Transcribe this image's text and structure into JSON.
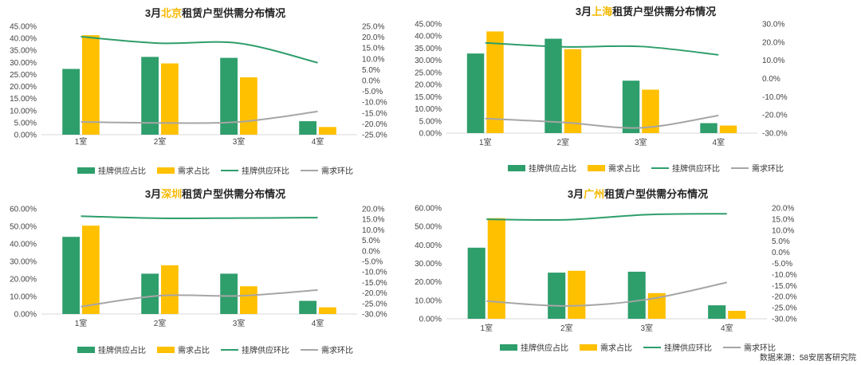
{
  "legend": {
    "supply_share": "挂牌供应占比",
    "demand_share": "需求占比",
    "supply_mom": "挂牌供应环比",
    "demand_mom": "需求环比"
  },
  "colors": {
    "supply_bar": "#2e9e6b",
    "demand_bar": "#ffc000",
    "supply_line": "#2e9e6b",
    "demand_line": "#a6a6a6",
    "city_highlight": "#f5b800"
  },
  "source": "数据来源：58安居客研究院",
  "chart_data": [
    {
      "type": "bar",
      "title_prefix": "3月",
      "city": "北京",
      "title_suffix": "租赁户型供需分布情况",
      "categories": [
        "1室",
        "2室",
        "3室",
        "4室"
      ],
      "left_ticks": [
        "45.00%",
        "40.00%",
        "35.00%",
        "30.00%",
        "25.00%",
        "20.00%",
        "15.00%",
        "10.00%",
        "5.00%",
        "0.00%"
      ],
      "right_ticks": [
        "25.0%",
        "20.0%",
        "15.0%",
        "10.0%",
        "5.0%",
        "0.0%",
        "-5.0%",
        "-10.0%",
        "-15.0%",
        "-20.0%",
        "-25.0%"
      ],
      "ylim_left": [
        0,
        45
      ],
      "ylim_right": [
        -25,
        25
      ],
      "series": [
        {
          "name": "挂牌供应占比",
          "axis": "left",
          "values": [
            27.3,
            32.3,
            31.9,
            5.6
          ]
        },
        {
          "name": "需求占比",
          "axis": "left",
          "values": [
            41.3,
            29.6,
            23.8,
            3.2
          ]
        },
        {
          "name": "挂牌供应环比",
          "axis": "right",
          "values": [
            20.2,
            17.2,
            17.2,
            8.2
          ]
        },
        {
          "name": "需求环比",
          "axis": "right",
          "values": [
            -19.1,
            -19.6,
            -19.1,
            -14.3
          ]
        }
      ]
    },
    {
      "type": "bar",
      "title_prefix": "3月",
      "city": "上海",
      "title_suffix": "租赁户型供需分布情况",
      "categories": [
        "1室",
        "2室",
        "3室",
        "4室"
      ],
      "left_ticks": [
        "45.00%",
        "40.00%",
        "35.00%",
        "30.00%",
        "25.00%",
        "20.00%",
        "15.00%",
        "10.00%",
        "5.00%",
        "0.00%"
      ],
      "right_ticks": [
        "30.0%",
        "20.0%",
        "10.0%",
        "0.0%",
        "-10.0%",
        "-20.0%",
        "-30.0%"
      ],
      "ylim_left": [
        0,
        45
      ],
      "ylim_right": [
        -30,
        30
      ],
      "series": [
        {
          "name": "挂牌供应占比",
          "axis": "left",
          "values": [
            32.8,
            38.9,
            21.6,
            4.1
          ]
        },
        {
          "name": "需求占比",
          "axis": "left",
          "values": [
            41.9,
            34.6,
            17.9,
            3.1
          ]
        },
        {
          "name": "挂牌供应环比",
          "axis": "right",
          "values": [
            19.6,
            17.4,
            17.6,
            13.0
          ]
        },
        {
          "name": "需求环比",
          "axis": "right",
          "values": [
            -22.0,
            -24.1,
            -27.1,
            -20.3
          ]
        }
      ]
    },
    {
      "type": "bar",
      "title_prefix": "3月",
      "city": "深圳",
      "title_suffix": "租赁户型供需分布情况",
      "categories": [
        "1室",
        "2室",
        "3室",
        "4室"
      ],
      "left_ticks": [
        "60.00%",
        "50.00%",
        "40.00%",
        "30.00%",
        "20.00%",
        "10.00%",
        "0.00%"
      ],
      "right_ticks": [
        "20.0%",
        "15.0%",
        "10.0%",
        "5.0%",
        "0.0%",
        "-5.0%",
        "-10.0%",
        "-15.0%",
        "-20.0%",
        "-25.0%",
        "-30.0%"
      ],
      "ylim_left": [
        0,
        60
      ],
      "ylim_right": [
        -30,
        20
      ],
      "series": [
        {
          "name": "挂牌供应占比",
          "axis": "left",
          "values": [
            44.0,
            23.0,
            23.0,
            7.5
          ]
        },
        {
          "name": "需求占比",
          "axis": "left",
          "values": [
            50.4,
            27.8,
            15.8,
            3.8
          ]
        },
        {
          "name": "挂牌供应环比",
          "axis": "right",
          "values": [
            16.5,
            15.5,
            15.6,
            15.8
          ]
        },
        {
          "name": "需求环比",
          "axis": "right",
          "values": [
            -26.5,
            -21.3,
            -21.4,
            -18.6
          ]
        }
      ]
    },
    {
      "type": "bar",
      "title_prefix": "3月",
      "city": "广州",
      "title_suffix": "租赁户型供需分布情况",
      "categories": [
        "1室",
        "2室",
        "3室",
        "4室"
      ],
      "left_ticks": [
        "60.00%",
        "50.00%",
        "40.00%",
        "30.00%",
        "20.00%",
        "10.00%",
        "0.00%"
      ],
      "right_ticks": [
        "20.0%",
        "15.0%",
        "10.0%",
        "5.0%",
        "0.0%",
        "-5.0%",
        "-10.0%",
        "-15.0%",
        "-20.0%",
        "-25.0%",
        "-30.0%"
      ],
      "ylim_left": [
        0,
        60
      ],
      "ylim_right": [
        -30,
        20
      ],
      "series": [
        {
          "name": "挂牌供应占比",
          "axis": "left",
          "values": [
            38.5,
            25.0,
            25.5,
            7.3
          ]
        },
        {
          "name": "需求占比",
          "axis": "left",
          "values": [
            54.5,
            26.0,
            13.9,
            4.3
          ]
        },
        {
          "name": "挂牌供应环比",
          "axis": "right",
          "values": [
            14.9,
            14.7,
            17.0,
            17.4
          ]
        },
        {
          "name": "需求环比",
          "axis": "right",
          "values": [
            -22.0,
            -24.2,
            -21.3,
            -13.6
          ]
        }
      ]
    }
  ]
}
